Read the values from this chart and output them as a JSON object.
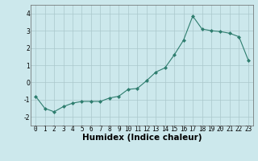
{
  "x": [
    0,
    1,
    2,
    3,
    4,
    5,
    6,
    7,
    8,
    9,
    10,
    11,
    12,
    13,
    14,
    15,
    16,
    17,
    18,
    19,
    20,
    21,
    22,
    23
  ],
  "y": [
    -0.8,
    -1.5,
    -1.7,
    -1.4,
    -1.2,
    -1.1,
    -1.1,
    -1.1,
    -0.9,
    -0.8,
    -0.4,
    -0.35,
    0.1,
    0.6,
    0.85,
    1.6,
    2.45,
    3.85,
    3.1,
    3.0,
    2.95,
    2.85,
    2.65,
    1.3
  ],
  "title": "",
  "xlabel": "Humidex (Indice chaleur)",
  "ylabel": "",
  "xlim": [
    -0.5,
    23.5
  ],
  "ylim": [
    -2.5,
    4.5
  ],
  "yticks": [
    -2,
    -1,
    0,
    1,
    2,
    3,
    4
  ],
  "xticks": [
    0,
    1,
    2,
    3,
    4,
    5,
    6,
    7,
    8,
    9,
    10,
    11,
    12,
    13,
    14,
    15,
    16,
    17,
    18,
    19,
    20,
    21,
    22,
    23
  ],
  "line_color": "#2e7d6e",
  "marker_color": "#2e7d6e",
  "bg_color": "#cce8ec",
  "grid_color": "#aac8cc",
  "tick_fontsize": 5.5,
  "xlabel_fontsize": 7.5
}
